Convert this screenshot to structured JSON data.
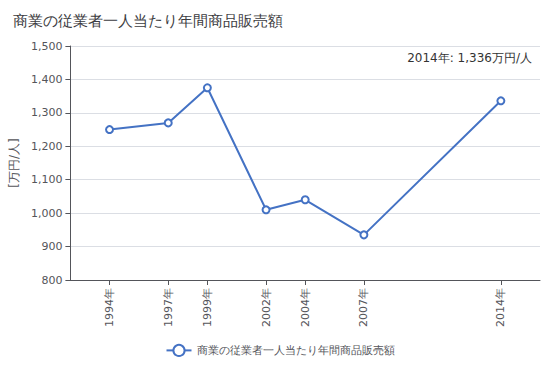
{
  "chart_data": {
    "type": "line",
    "title": "商業の従業者一人当たり年間商品販売額",
    "ylabel": "[万円/人]",
    "annotation": "2014年: 1,336万円/人",
    "x": [
      1994,
      1997,
      1999,
      2002,
      2004,
      2007,
      2014
    ],
    "series": [
      {
        "name": "商業の従業者一人当たり年間商品販売額",
        "color": "#4472C4",
        "marker": "circle",
        "values": [
          1250,
          1270,
          1375,
          1010,
          1040,
          935,
          1336
        ]
      }
    ],
    "xlim": [
      1992,
      2016
    ],
    "xticks": [
      {
        "value": 1994,
        "label": "1994年"
      },
      {
        "value": 1997,
        "label": "1997年"
      },
      {
        "value": 1999,
        "label": "1999年"
      },
      {
        "value": 2002,
        "label": "2002年"
      },
      {
        "value": 2004,
        "label": "2004年"
      },
      {
        "value": 2007,
        "label": "2007年"
      },
      {
        "value": 2014,
        "label": "2014年"
      }
    ],
    "ylim": [
      800,
      1500
    ],
    "yticks": [
      800,
      900,
      {
        "value": 1000,
        "label": "1,000"
      },
      {
        "value": 1100,
        "label": "1,100"
      },
      {
        "value": 1200,
        "label": "1,200"
      },
      {
        "value": 1300,
        "label": "1,300"
      },
      {
        "value": 1400,
        "label": "1,400"
      },
      {
        "value": 1500,
        "label": "1,500"
      }
    ],
    "grid": true,
    "legend": "bottom"
  }
}
